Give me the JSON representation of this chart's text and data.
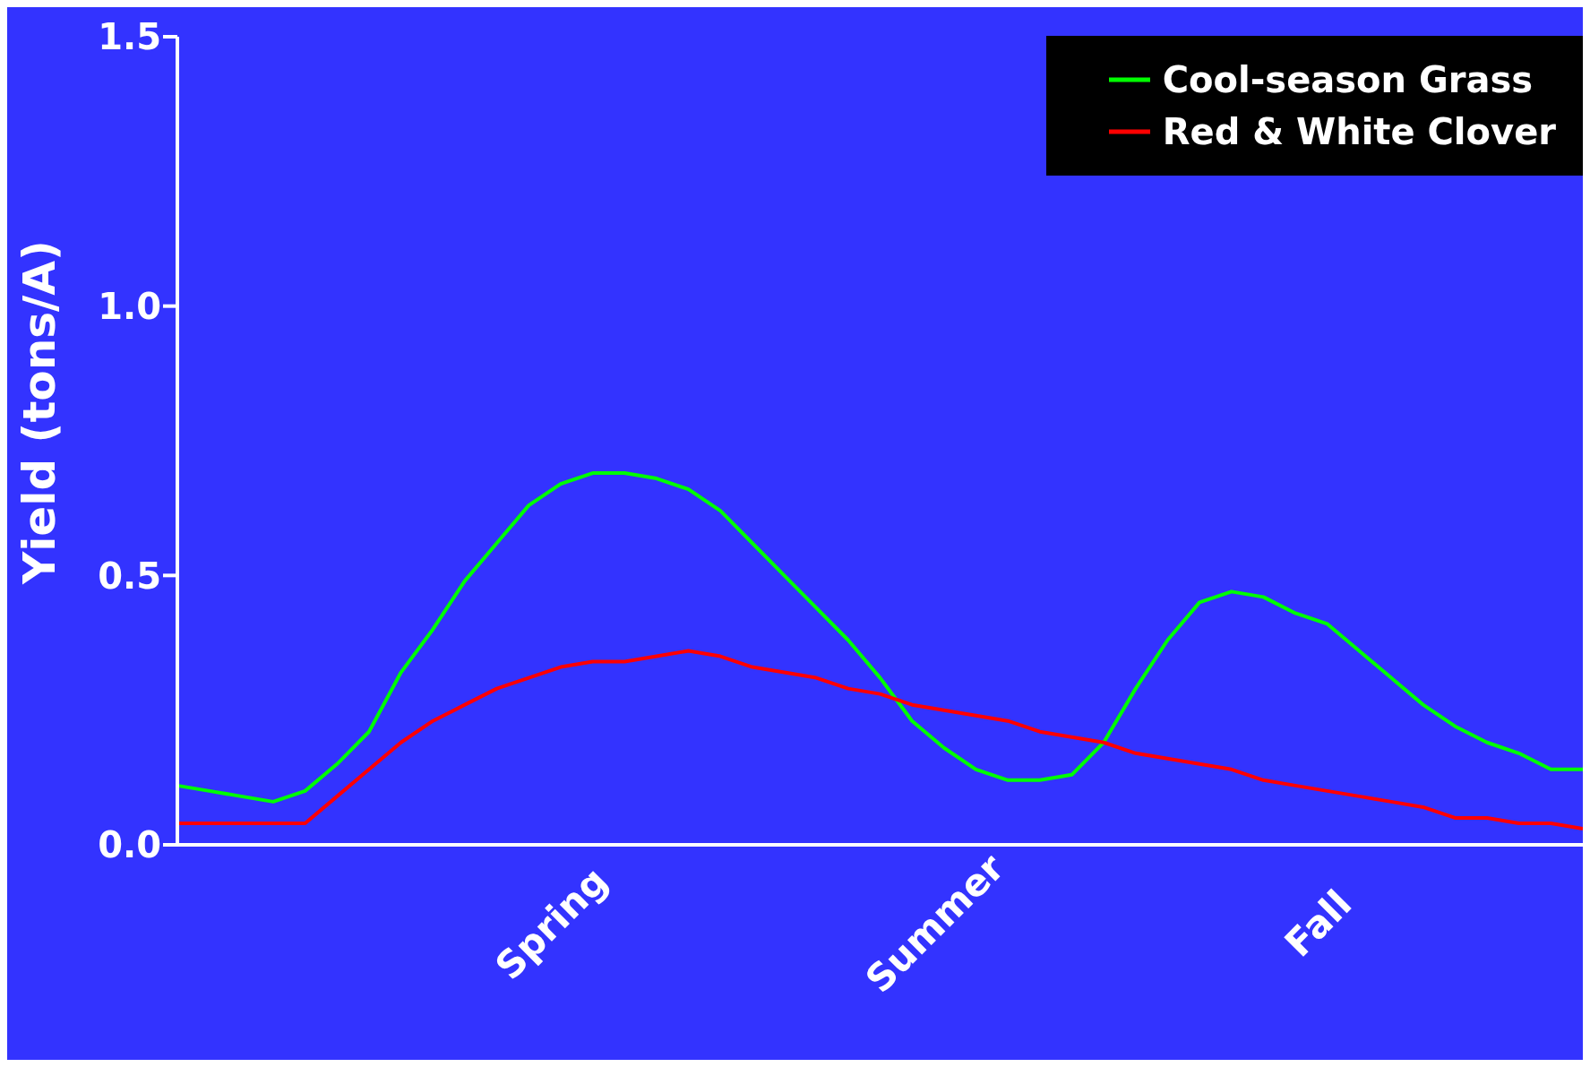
{
  "chart_data": {
    "type": "line",
    "ylabel": "Yield  (tons/A)",
    "categories": [
      null,
      null,
      null,
      null,
      null,
      null,
      null,
      null,
      null,
      null,
      null,
      null,
      "Spring",
      null,
      null,
      null,
      null,
      null,
      null,
      null,
      null,
      null,
      null,
      null,
      "Summer",
      null,
      null,
      null,
      null,
      null,
      null,
      null,
      null,
      null,
      null,
      null,
      "Fall",
      null,
      null,
      null,
      null,
      null,
      null,
      null,
      null
    ],
    "series": [
      {
        "name": "Cool-season Grass",
        "color": "#00ff00",
        "values": [
          0.11,
          0.1,
          0.09,
          0.08,
          0.1,
          0.15,
          0.21,
          0.32,
          0.4,
          0.49,
          0.56,
          0.63,
          0.67,
          0.69,
          0.69,
          0.68,
          0.66,
          0.62,
          0.56,
          0.5,
          0.44,
          0.38,
          0.31,
          0.23,
          0.18,
          0.14,
          0.12,
          0.12,
          0.13,
          0.19,
          0.29,
          0.38,
          0.45,
          0.47,
          0.46,
          0.43,
          0.41,
          0.36,
          0.31,
          0.26,
          0.22,
          0.19,
          0.17,
          0.14,
          0.14
        ]
      },
      {
        "name": "Red & White Clover",
        "color": "#ff0000",
        "values": [
          0.04,
          0.04,
          0.04,
          0.04,
          0.04,
          0.09,
          0.14,
          0.19,
          0.23,
          0.26,
          0.29,
          0.31,
          0.33,
          0.34,
          0.34,
          0.35,
          0.36,
          0.35,
          0.33,
          0.32,
          0.31,
          0.29,
          0.28,
          0.26,
          0.25,
          0.24,
          0.23,
          0.21,
          0.2,
          0.19,
          0.17,
          0.16,
          0.15,
          0.14,
          0.12,
          0.11,
          0.1,
          0.09,
          0.08,
          0.07,
          0.05,
          0.05,
          0.04,
          0.04,
          0.03
        ]
      }
    ],
    "ylim": [
      0,
      1.5
    ],
    "yticks": [
      {
        "value": 0,
        "label": "0.0"
      },
      0.5,
      {
        "value": 1,
        "label": "1.0"
      },
      1.5
    ],
    "grid": false,
    "legend": "top right",
    "marker": "none",
    "line_style": "solid"
  }
}
